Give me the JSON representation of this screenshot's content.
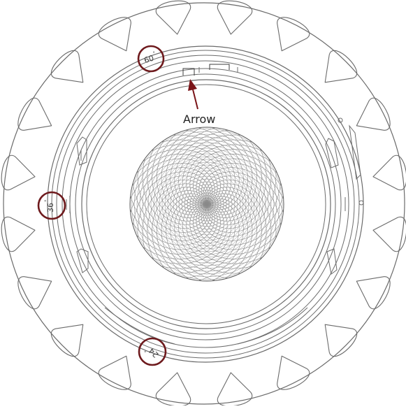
{
  "annotation": {
    "label": "Arrow",
    "arrow_color": "#7a1418"
  },
  "angle_markers": [
    {
      "id": "marker-60",
      "text": "60",
      "degree_symbol": "°"
    },
    {
      "id": "marker-36",
      "text": "36",
      "degree_symbol": "°"
    },
    {
      "id": "marker-24",
      "text": "24",
      "degree_symbol": "°"
    }
  ],
  "colors": {
    "line": "#6b6b6b",
    "line_dark": "#3c3c3c",
    "highlight_circle": "#6e1a1d",
    "mesh": "#8a8a8a",
    "background": "#ffffff"
  }
}
